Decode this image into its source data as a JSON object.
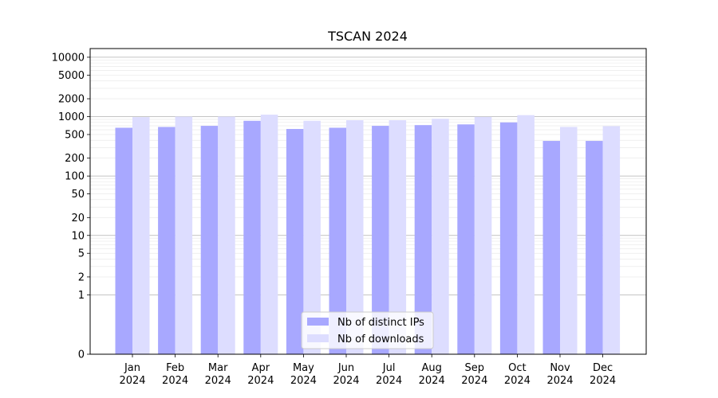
{
  "chart_data": {
    "type": "bar",
    "title": "TSCAN 2024",
    "xlabel": "",
    "ylabel": "",
    "scale": "symlog",
    "categories": [
      "Jan\n2024",
      "Feb\n2024",
      "Mar\n2024",
      "Apr\n2024",
      "May\n2024",
      "Jun\n2024",
      "Jul\n2024",
      "Aug\n2024",
      "Sep\n2024",
      "Oct\n2024",
      "Nov\n2024",
      "Dec\n2024"
    ],
    "series": [
      {
        "name": "Nb of distinct IPs",
        "color": "#a8a8ff",
        "values": [
          650,
          670,
          700,
          850,
          620,
          650,
          700,
          720,
          740,
          800,
          390,
          390
        ]
      },
      {
        "name": "Nb of downloads",
        "color": "#ddddff",
        "values": [
          980,
          1000,
          1000,
          1080,
          850,
          870,
          870,
          920,
          990,
          1060,
          670,
          690
        ]
      }
    ],
    "yticks": [
      0,
      1,
      2,
      5,
      10,
      20,
      50,
      100,
      200,
      500,
      1000,
      2000,
      5000,
      10000
    ],
    "ylim": [
      0,
      14000
    ],
    "grid": true,
    "legend": "bottom-center"
  }
}
